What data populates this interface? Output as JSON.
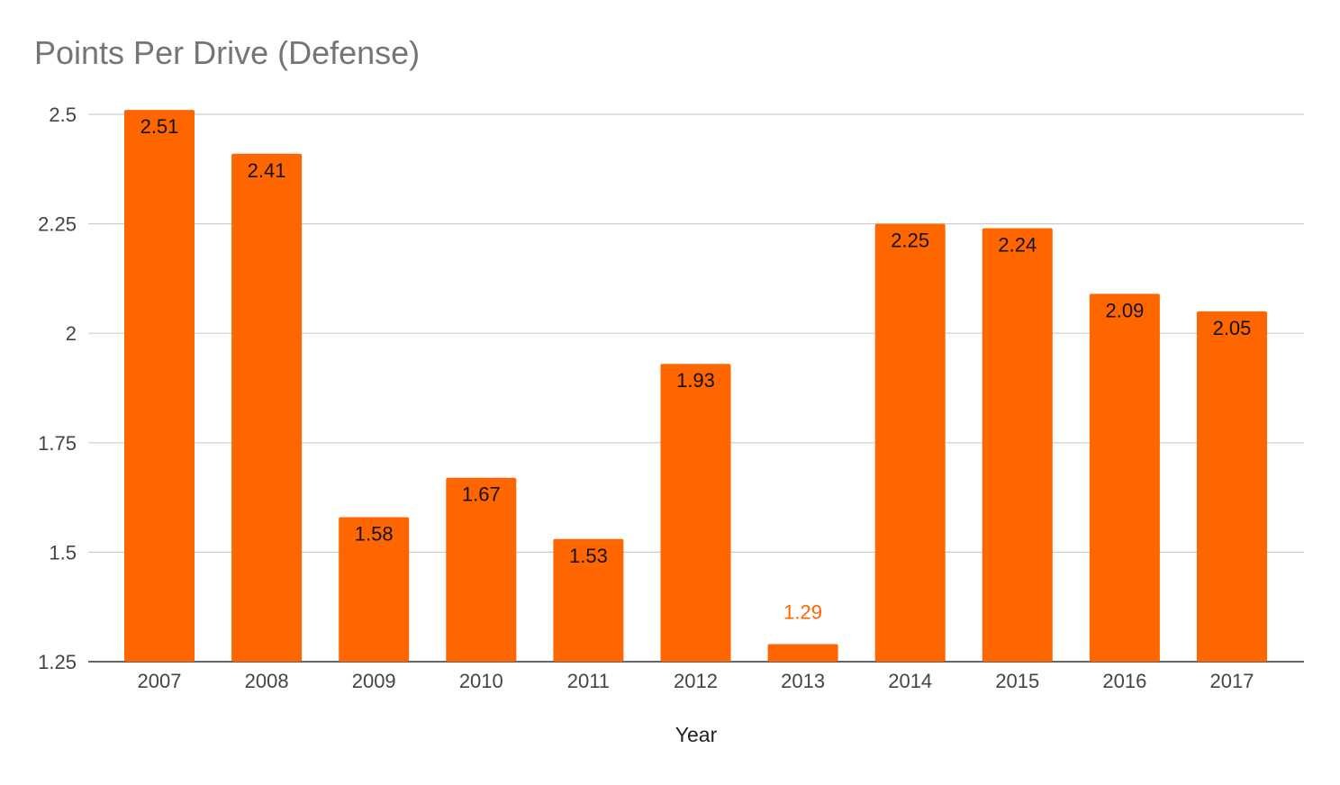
{
  "chart_data": {
    "type": "bar",
    "title": "Points Per Drive (Defense)",
    "xlabel": "Year",
    "ylabel": "",
    "categories": [
      "2007",
      "2008",
      "2009",
      "2010",
      "2011",
      "2012",
      "2013",
      "2014",
      "2015",
      "2016",
      "2017"
    ],
    "values": [
      2.51,
      2.41,
      1.58,
      1.67,
      1.53,
      1.93,
      1.29,
      2.25,
      2.24,
      2.09,
      2.05
    ],
    "value_labels": [
      "2.51",
      "2.41",
      "1.58",
      "1.67",
      "1.53",
      "1.93",
      "1.29",
      "2.25",
      "2.24",
      "2.09",
      "2.05"
    ],
    "ylim": [
      1.25,
      2.5
    ],
    "yticks": [
      1.25,
      1.5,
      1.75,
      2,
      2.25,
      2.5
    ],
    "ytick_labels": [
      "1.25",
      "1.5",
      "1.75",
      "2",
      "2.25",
      "2.5"
    ],
    "grid": true,
    "legend": "none",
    "bar_color": "#ff6600",
    "inside_label_color": "#111111",
    "outside_label_color": "#ff6600",
    "grid_color": "#cccccc"
  }
}
